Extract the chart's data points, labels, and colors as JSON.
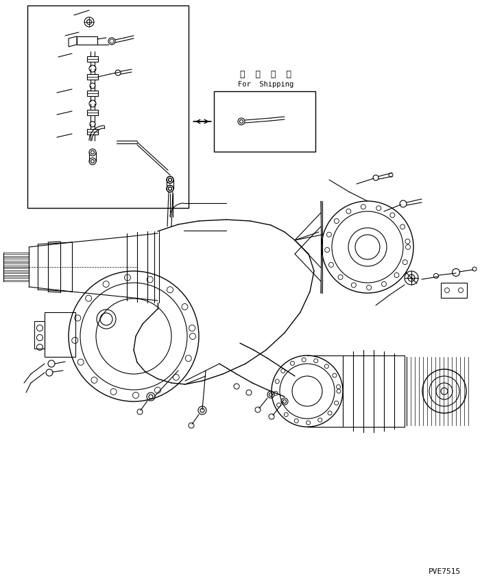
{
  "background_color": "#ffffff",
  "line_color": "#000000",
  "fig_width": 7.19,
  "fig_height": 8.51,
  "dpi": 100,
  "watermark_text": "PVE7515",
  "shipping_label_jp": "運  携  部  品",
  "shipping_label_en": "For  Shipping"
}
